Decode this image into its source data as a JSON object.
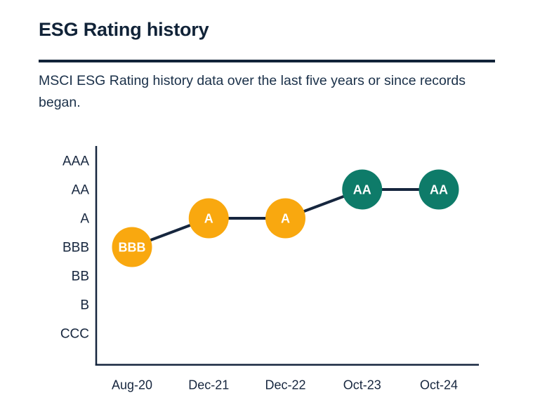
{
  "page": {
    "title": "ESG Rating history",
    "subtitle": "MSCI ESG Rating history data over the last five years or since records began."
  },
  "colors": {
    "title_navy": "#112338",
    "subtitle_navy": "#1A3049",
    "axis_navy": "#16263E",
    "trend_line_navy": "#16263E",
    "marker_yellow": "#F9A80F",
    "marker_teal": "#0E7B69",
    "marker_label_white": "#FFFFFF",
    "background": "#FFFFFF"
  },
  "chart_data": {
    "type": "line",
    "title": "ESG Rating history",
    "x": [
      "Aug-20",
      "Dec-21",
      "Dec-22",
      "Oct-23",
      "Oct-24"
    ],
    "y_scale_top_to_bottom": [
      "AAA",
      "AA",
      "A",
      "BBB",
      "BB",
      "B",
      "CCC"
    ],
    "values": [
      "BBB",
      "A",
      "A",
      "AA",
      "AA"
    ],
    "point_colors": [
      "#F9A80F",
      "#F9A80F",
      "#F9A80F",
      "#0E7B69",
      "#0E7B69"
    ],
    "xlabel": "",
    "ylabel": "",
    "grid": false,
    "legend": false
  }
}
